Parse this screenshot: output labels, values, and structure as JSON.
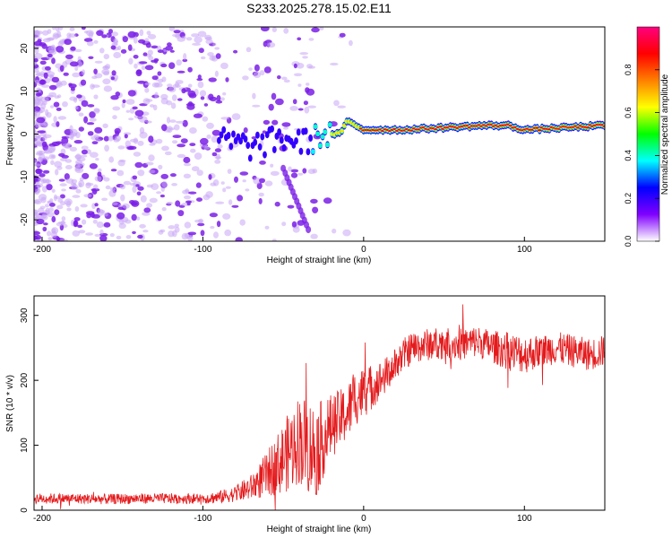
{
  "title": "S233.2025.278.15.02.E11",
  "chart_data": [
    {
      "type": "heatmap",
      "name": "spectrogram",
      "xlabel": "Height of straight line (km)",
      "ylabel": "Frequency (Hz)",
      "xlim": [
        -205,
        150
      ],
      "ylim": [
        -25,
        25
      ],
      "xticks": [
        -200,
        -100,
        0,
        100
      ],
      "yticks": [
        -20,
        -10,
        0,
        10,
        20
      ],
      "grid": false,
      "colorbar": {
        "label": "Normalized spectral amplitude",
        "range": [
          0.0,
          1.0
        ],
        "ticks": [
          0.0,
          0.2,
          0.4,
          0.6,
          0.8
        ],
        "colormap": [
          "#ffffff",
          "#8000ff",
          "#0000ff",
          "#00ffff",
          "#00ff00",
          "#ffff00",
          "#ff8000",
          "#ff0000",
          "#ff0080"
        ]
      },
      "signal_ridge": {
        "note": "Coherent signal centered near 2 Hz appearing above about -15 km; noisy scatter below -80 km",
        "x": [
          -90,
          -70,
          -50,
          -35,
          -25,
          -15,
          -10,
          0,
          25,
          50,
          75,
          90,
          100,
          125,
          150
        ],
        "frequency": [
          -1,
          -3,
          -1,
          -2,
          0,
          0,
          3,
          1,
          1,
          1.5,
          2,
          2,
          1,
          1.5,
          2
        ],
        "amplitude": [
          0.25,
          0.2,
          0.25,
          0.3,
          0.5,
          0.7,
          0.7,
          0.9,
          0.95,
          0.95,
          0.9,
          0.95,
          0.9,
          0.85,
          0.9
        ]
      }
    },
    {
      "type": "line",
      "name": "snr",
      "xlabel": "Height of straight line (km)",
      "ylabel": "SNR (10 * v/v)",
      "xlim": [
        -205,
        150
      ],
      "ylim": [
        0,
        330
      ],
      "xticks": [
        -200,
        -100,
        0,
        100
      ],
      "yticks": [
        0,
        100,
        200,
        300
      ],
      "grid": false,
      "color": "#e41a1c",
      "series": [
        {
          "name": "SNR",
          "x": [
            -205,
            -180,
            -160,
            -140,
            -120,
            -100,
            -90,
            -80,
            -70,
            -60,
            -50,
            -40,
            -35,
            -30,
            -25,
            -20,
            -15,
            -10,
            -5,
            0,
            5,
            10,
            15,
            20,
            25,
            30,
            40,
            50,
            60,
            70,
            80,
            90,
            100,
            110,
            120,
            130,
            140,
            150
          ],
          "y": [
            18,
            18,
            17,
            18,
            18,
            18,
            20,
            25,
            35,
            55,
            80,
            110,
            100,
            90,
            110,
            130,
            140,
            150,
            175,
            180,
            190,
            200,
            210,
            225,
            240,
            250,
            255,
            258,
            255,
            260,
            252,
            245,
            240,
            245,
            250,
            245,
            240,
            245
          ],
          "noise_amplitude": [
            8,
            8,
            8,
            8,
            8,
            8,
            10,
            12,
            20,
            35,
            55,
            70,
            75,
            75,
            60,
            50,
            45,
            45,
            45,
            40,
            35,
            30,
            28,
            25,
            25,
            25,
            25,
            25,
            25,
            25,
            25,
            30,
            30,
            25,
            25,
            25,
            25,
            25
          ]
        }
      ]
    }
  ]
}
